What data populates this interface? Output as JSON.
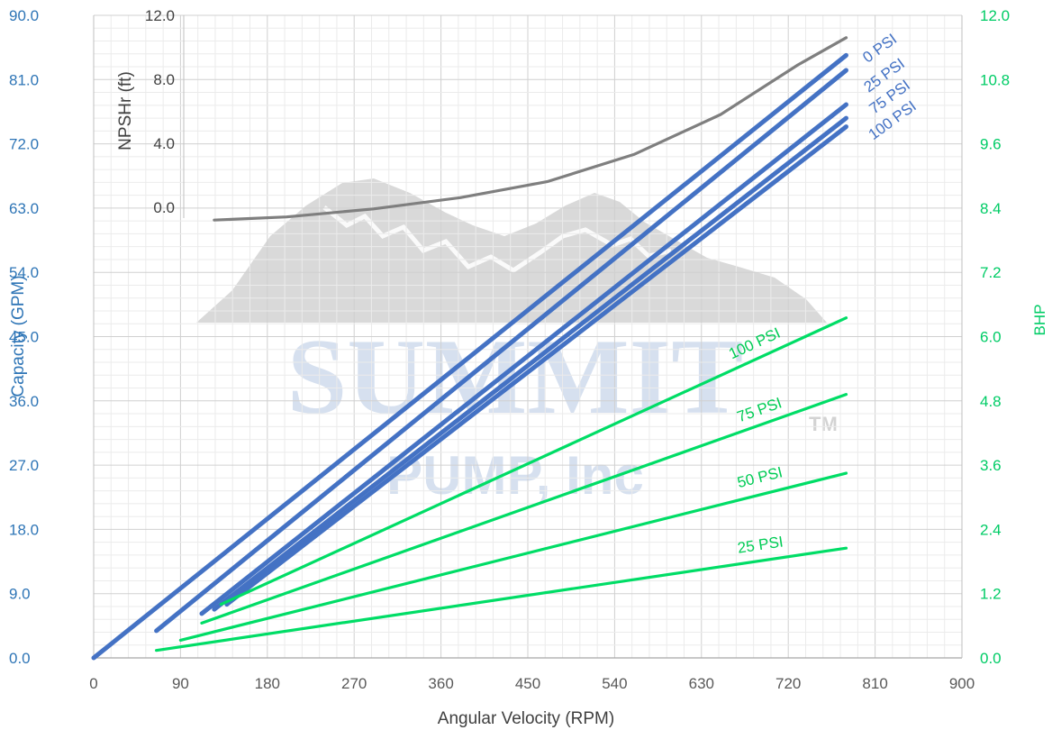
{
  "chart_data": {
    "type": "line",
    "title": "",
    "xlabel": "Angular Velocity (RPM)",
    "xlim": [
      0,
      900
    ],
    "xticks": [
      "0",
      "90",
      "180",
      "270",
      "360",
      "450",
      "540",
      "630",
      "720",
      "810",
      "900"
    ],
    "y_left": {
      "label": "Capacity (GPM)",
      "ylim": [
        0,
        90
      ],
      "ticks": [
        "0.0",
        "9.0",
        "18.0",
        "27.0",
        "36.0",
        "45.0",
        "54.0",
        "63.0",
        "72.0",
        "81.0",
        "90.0"
      ],
      "color": "#2E75B6"
    },
    "y_right": {
      "label": "BHP",
      "ylim": [
        0,
        12
      ],
      "ticks": [
        "0.0",
        "1.2",
        "2.4",
        "3.6",
        "4.8",
        "6.0",
        "7.2",
        "8.4",
        "9.6",
        "10.8",
        "12.0"
      ],
      "color": "#00CC66"
    },
    "y_npsh": {
      "label": "NPSHr (ft)",
      "ticks": [
        "0.0",
        "4.0",
        "8.0",
        "12.0"
      ],
      "values": [
        0,
        4,
        8,
        12
      ],
      "color": "#404040"
    },
    "grid": true,
    "watermark": {
      "main": "SUMMIT",
      "sub": "PUMP, Inc",
      "tm": "TM"
    },
    "capacity_series": [
      {
        "name": "0 PSI",
        "color": "#4472C4",
        "x": [
          0,
          780
        ],
        "y": [
          0,
          84.4
        ]
      },
      {
        "name": "25 PSI",
        "color": "#4472C4",
        "x": [
          65,
          780
        ],
        "y": [
          3.8,
          82.3
        ]
      },
      {
        "name": "75 PSI",
        "color": "#4472C4",
        "x": [
          112,
          780
        ],
        "y": [
          6.2,
          77.5
        ]
      },
      {
        "name": "100 PSI",
        "color": "#4472C4",
        "x": [
          125,
          780
        ],
        "y": [
          6.8,
          75.6
        ]
      },
      {
        "name": "",
        "color": "#4472C4",
        "x": [
          138,
          780
        ],
        "y": [
          7.5,
          74.4
        ]
      }
    ],
    "bhp_series": [
      {
        "name": "25 PSI",
        "color": "#00DD66",
        "x": [
          65,
          780
        ],
        "y": [
          0.14,
          2.05
        ]
      },
      {
        "name": "50 PSI",
        "color": "#00DD66",
        "x": [
          90,
          780
        ],
        "y": [
          0.33,
          3.45
        ]
      },
      {
        "name": "75 PSI",
        "color": "#00DD66",
        "x": [
          112,
          780
        ],
        "y": [
          0.65,
          4.92
        ]
      },
      {
        "name": "100 PSI",
        "color": "#00DD66",
        "x": [
          132,
          780
        ],
        "y": [
          1.0,
          6.35
        ]
      }
    ],
    "npsh_series": {
      "name": "",
      "color": "#7F7F7F",
      "x": [
        125,
        200,
        290,
        380,
        470,
        560,
        650,
        730,
        780
      ],
      "y": [
        -0.8,
        -0.6,
        -0.1,
        0.6,
        1.6,
        3.3,
        5.8,
        8.9,
        10.6
      ]
    }
  }
}
